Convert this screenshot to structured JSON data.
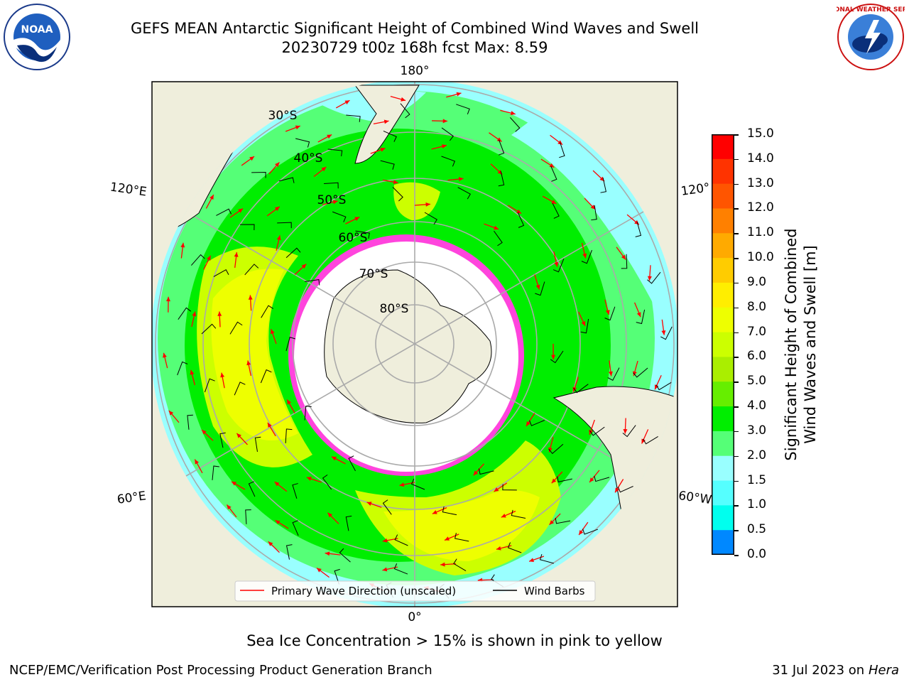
{
  "title_line1": "GEFS MEAN Antarctic Significant Height of Combined Wind Waves and Swell",
  "title_line2": "20230729 t00z 168h fcst   Max: 8.59",
  "logo_left_text": "NOAA",
  "logo_right_text": "NATIONAL WEATHER SERVICE",
  "map": {
    "longitude_labels": [
      "180°",
      "120°E",
      "120°",
      "60°E",
      "60°W",
      "0°"
    ],
    "latitude_labels": [
      "30°S",
      "40°S",
      "50°S",
      "60°S",
      "70°S",
      "80°S"
    ],
    "legend": {
      "wave": "Primary Wave Direction (unscaled)",
      "barbs": "Wind Barbs"
    }
  },
  "colorbar": {
    "title_line1": "Significant Height of Combined",
    "title_line2": "Wind Waves and Swell [m]",
    "ticks": [
      "15.0",
      "14.0",
      "13.0",
      "12.0",
      "11.0",
      "10.0",
      "9.0",
      "8.0",
      "7.0",
      "6.0",
      "5.0",
      "4.0",
      "3.0",
      "2.0",
      "1.5",
      "1.0",
      "0.5",
      "0.0"
    ],
    "colors": [
      "#ff0000",
      "#ff3300",
      "#ff5500",
      "#ff8000",
      "#ffaa00",
      "#ffcc00",
      "#ffee00",
      "#eeff00",
      "#ccff00",
      "#aaee00",
      "#66ee00",
      "#00ee00",
      "#55ff77",
      "#99ffff",
      "#55ffff",
      "#00ffee",
      "#0088ff",
      "#0000ff"
    ],
    "ocean_colors": {
      "low": "#99ffff",
      "mid": "#55ff77",
      "green": "#00ee00",
      "yellowgreen": "#ccff00",
      "yellow": "#eeff00",
      "land": "#efeedc",
      "ice": "#ffffff",
      "ice_edge": "#ff44dd"
    }
  },
  "caption": "Sea Ice Concentration > 15% is shown in pink to yellow",
  "footer_left": "NCEP/EMC/Verification Post Processing Product Generation Branch",
  "footer_right_date": "31 Jul 2023 on ",
  "footer_right_machine": "Hera"
}
